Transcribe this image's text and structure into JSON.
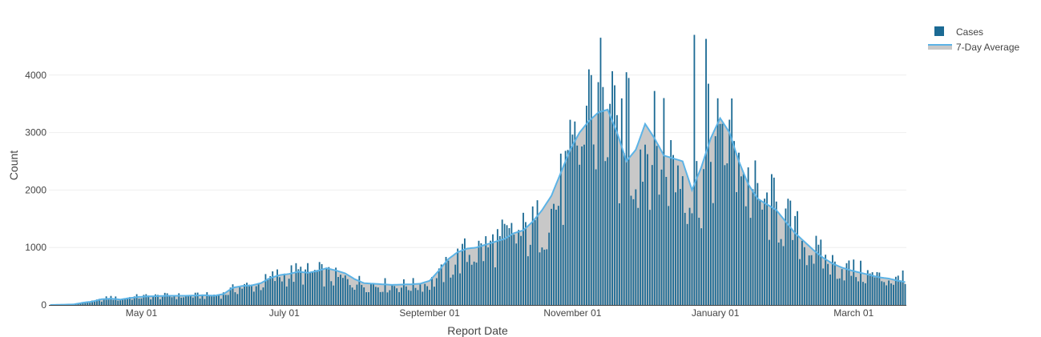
{
  "chart_data": {
    "type": "bar",
    "xlabel": "Report Date",
    "ylabel": "Count",
    "title": "",
    "ylim": [
      0,
      5000
    ],
    "yticks": [
      0,
      1000,
      2000,
      3000,
      4000
    ],
    "ytick_labels": [
      "0",
      "1000",
      "2000",
      "3000",
      "4000"
    ],
    "xlim_day_index": [
      0,
      365
    ],
    "xticks": [
      {
        "day": 39,
        "label": "May 01"
      },
      {
        "day": 100,
        "label": "July 01"
      },
      {
        "day": 162,
        "label": "September 01"
      },
      {
        "day": 223,
        "label": "November 01"
      },
      {
        "day": 284,
        "label": "January 01"
      },
      {
        "day": 343,
        "label": "March 01"
      }
    ],
    "legend": {
      "placement": "top-right",
      "entries": [
        {
          "name": "Cases",
          "kind": "bar"
        },
        {
          "name": "7-Day Average",
          "kind": "area"
        }
      ]
    },
    "colors": {
      "cases": "#1b6a94",
      "cases_edge": "#0e5a86",
      "average_line": "#5cb3e6",
      "average_fill": "#c8c8c8",
      "grid": "#eeeeee"
    },
    "series": [
      {
        "name": "Cases",
        "type": "bar",
        "anchors": [
          [
            0,
            0
          ],
          [
            10,
            10
          ],
          [
            14,
            40
          ],
          [
            18,
            60
          ],
          [
            22,
            100
          ],
          [
            26,
            140
          ],
          [
            30,
            100
          ],
          [
            34,
            140
          ],
          [
            38,
            150
          ],
          [
            42,
            160
          ],
          [
            46,
            160
          ],
          [
            50,
            165
          ],
          [
            54,
            165
          ],
          [
            58,
            165
          ],
          [
            62,
            170
          ],
          [
            66,
            170
          ],
          [
            70,
            180
          ],
          [
            74,
            200
          ],
          [
            78,
            280
          ],
          [
            82,
            340
          ],
          [
            86,
            350
          ],
          [
            90,
            380
          ],
          [
            94,
            480
          ],
          [
            98,
            540
          ],
          [
            102,
            560
          ],
          [
            106,
            600
          ],
          [
            110,
            580
          ],
          [
            114,
            600
          ],
          [
            118,
            550
          ],
          [
            122,
            500
          ],
          [
            126,
            460
          ],
          [
            130,
            430
          ],
          [
            134,
            400
          ],
          [
            138,
            390
          ],
          [
            142,
            370
          ],
          [
            146,
            360
          ],
          [
            150,
            360
          ],
          [
            154,
            360
          ],
          [
            158,
            380
          ],
          [
            162,
            400
          ],
          [
            166,
            520
          ],
          [
            170,
            700
          ],
          [
            174,
            850
          ],
          [
            178,
            950
          ],
          [
            182,
            1000
          ],
          [
            186,
            1050
          ],
          [
            190,
            1150
          ],
          [
            194,
            1200
          ],
          [
            198,
            1250
          ],
          [
            202,
            1300
          ],
          [
            206,
            1400
          ],
          [
            210,
            1550
          ],
          [
            214,
            1750
          ],
          [
            218,
            2100
          ],
          [
            222,
            2500
          ],
          [
            226,
            2900
          ],
          [
            230,
            3200
          ],
          [
            234,
            3350
          ],
          [
            238,
            3400
          ],
          [
            242,
            3000
          ],
          [
            246,
            2600
          ],
          [
            250,
            2700
          ],
          [
            254,
            3100
          ],
          [
            258,
            2900
          ],
          [
            262,
            2600
          ],
          [
            266,
            2600
          ],
          [
            270,
            2550
          ],
          [
            274,
            2100
          ],
          [
            278,
            2300
          ],
          [
            282,
            2800
          ],
          [
            286,
            3200
          ],
          [
            290,
            3100
          ],
          [
            294,
            2600
          ],
          [
            298,
            2200
          ],
          [
            302,
            1950
          ],
          [
            306,
            1850
          ],
          [
            310,
            1750
          ],
          [
            314,
            1550
          ],
          [
            318,
            1350
          ],
          [
            322,
            1150
          ],
          [
            326,
            1000
          ],
          [
            330,
            850
          ],
          [
            334,
            750
          ],
          [
            338,
            700
          ],
          [
            342,
            650
          ],
          [
            346,
            600
          ],
          [
            350,
            550
          ],
          [
            354,
            500
          ],
          [
            358,
            480
          ],
          [
            362,
            450
          ],
          [
            365,
            430
          ]
        ],
        "spikes": [
          {
            "day": 230,
            "value": 4100
          },
          {
            "day": 231,
            "value": 4000
          },
          {
            "day": 235,
            "value": 4650
          },
          {
            "day": 239,
            "value": 3500
          },
          {
            "day": 246,
            "value": 4050
          },
          {
            "day": 247,
            "value": 3950
          },
          {
            "day": 262,
            "value": 3600
          },
          {
            "day": 275,
            "value": 4700
          },
          {
            "day": 280,
            "value": 4630
          },
          {
            "day": 281,
            "value": 3850
          },
          {
            "day": 286,
            "value": 3150
          },
          {
            "day": 294,
            "value": 2650
          },
          {
            "day": 305,
            "value": 1850
          },
          {
            "day": 364,
            "value": 600
          }
        ]
      },
      {
        "name": "7-Day Average",
        "type": "area",
        "anchors": [
          [
            0,
            0
          ],
          [
            10,
            10
          ],
          [
            14,
            40
          ],
          [
            18,
            60
          ],
          [
            22,
            100
          ],
          [
            26,
            110
          ],
          [
            30,
            95
          ],
          [
            34,
            120
          ],
          [
            38,
            140
          ],
          [
            42,
            150
          ],
          [
            46,
            155
          ],
          [
            50,
            160
          ],
          [
            54,
            160
          ],
          [
            58,
            160
          ],
          [
            62,
            165
          ],
          [
            66,
            170
          ],
          [
            70,
            160
          ],
          [
            74,
            190
          ],
          [
            78,
            300
          ],
          [
            82,
            330
          ],
          [
            86,
            340
          ],
          [
            90,
            380
          ],
          [
            94,
            470
          ],
          [
            98,
            520
          ],
          [
            102,
            540
          ],
          [
            106,
            580
          ],
          [
            110,
            560
          ],
          [
            114,
            590
          ],
          [
            118,
            640
          ],
          [
            122,
            600
          ],
          [
            126,
            550
          ],
          [
            130,
            450
          ],
          [
            134,
            380
          ],
          [
            138,
            370
          ],
          [
            142,
            360
          ],
          [
            146,
            350
          ],
          [
            150,
            355
          ],
          [
            154,
            360
          ],
          [
            158,
            370
          ],
          [
            162,
            420
          ],
          [
            166,
            600
          ],
          [
            170,
            800
          ],
          [
            174,
            920
          ],
          [
            178,
            980
          ],
          [
            182,
            1000
          ],
          [
            186,
            1050
          ],
          [
            190,
            1100
          ],
          [
            194,
            1150
          ],
          [
            198,
            1250
          ],
          [
            202,
            1300
          ],
          [
            206,
            1450
          ],
          [
            210,
            1650
          ],
          [
            214,
            1900
          ],
          [
            218,
            2300
          ],
          [
            222,
            2700
          ],
          [
            226,
            3000
          ],
          [
            230,
            3200
          ],
          [
            234,
            3350
          ],
          [
            238,
            3400
          ],
          [
            242,
            3000
          ],
          [
            246,
            2500
          ],
          [
            250,
            2700
          ],
          [
            254,
            3150
          ],
          [
            258,
            2900
          ],
          [
            262,
            2600
          ],
          [
            266,
            2550
          ],
          [
            270,
            2500
          ],
          [
            274,
            2000
          ],
          [
            278,
            2400
          ],
          [
            282,
            2900
          ],
          [
            286,
            3250
          ],
          [
            290,
            3000
          ],
          [
            294,
            2500
          ],
          [
            298,
            2100
          ],
          [
            302,
            1850
          ],
          [
            306,
            1750
          ],
          [
            310,
            1650
          ],
          [
            314,
            1450
          ],
          [
            318,
            1250
          ],
          [
            322,
            1100
          ],
          [
            326,
            950
          ],
          [
            330,
            820
          ],
          [
            334,
            720
          ],
          [
            338,
            650
          ],
          [
            342,
            600
          ],
          [
            346,
            560
          ],
          [
            350,
            520
          ],
          [
            354,
            480
          ],
          [
            358,
            460
          ],
          [
            362,
            420
          ],
          [
            365,
            400
          ]
        ]
      }
    ]
  }
}
